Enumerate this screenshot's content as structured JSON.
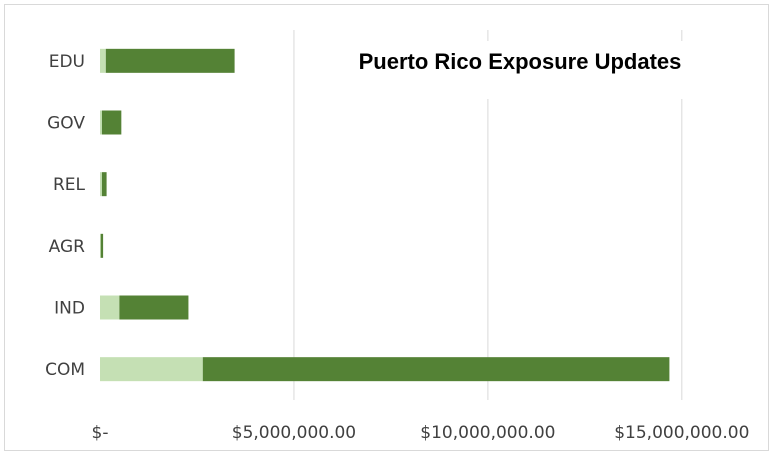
{
  "chart_data": {
    "type": "bar",
    "orientation": "horizontal",
    "stacked": true,
    "title": "Puerto Rico Exposure Updates",
    "categories": [
      "EDU",
      "GOV",
      "REL",
      "AGR",
      "IND",
      "COM"
    ],
    "series": [
      {
        "color": "#c5e0b4",
        "values": [
          150000,
          50000,
          50000,
          20000,
          500000,
          2650000
        ]
      },
      {
        "color": "#548235",
        "values": [
          3320000,
          500000,
          120000,
          60000,
          1780000,
          12030000
        ]
      }
    ],
    "xlim": [
      0,
      16500000
    ],
    "xticks": [
      0,
      5000000,
      10000000,
      15000000
    ],
    "xtick_labels": [
      "$-",
      "$5,000,000.00",
      "$10,000,000.00",
      "$15,000,000.00"
    ],
    "grid": "vertical",
    "legend": "none"
  }
}
